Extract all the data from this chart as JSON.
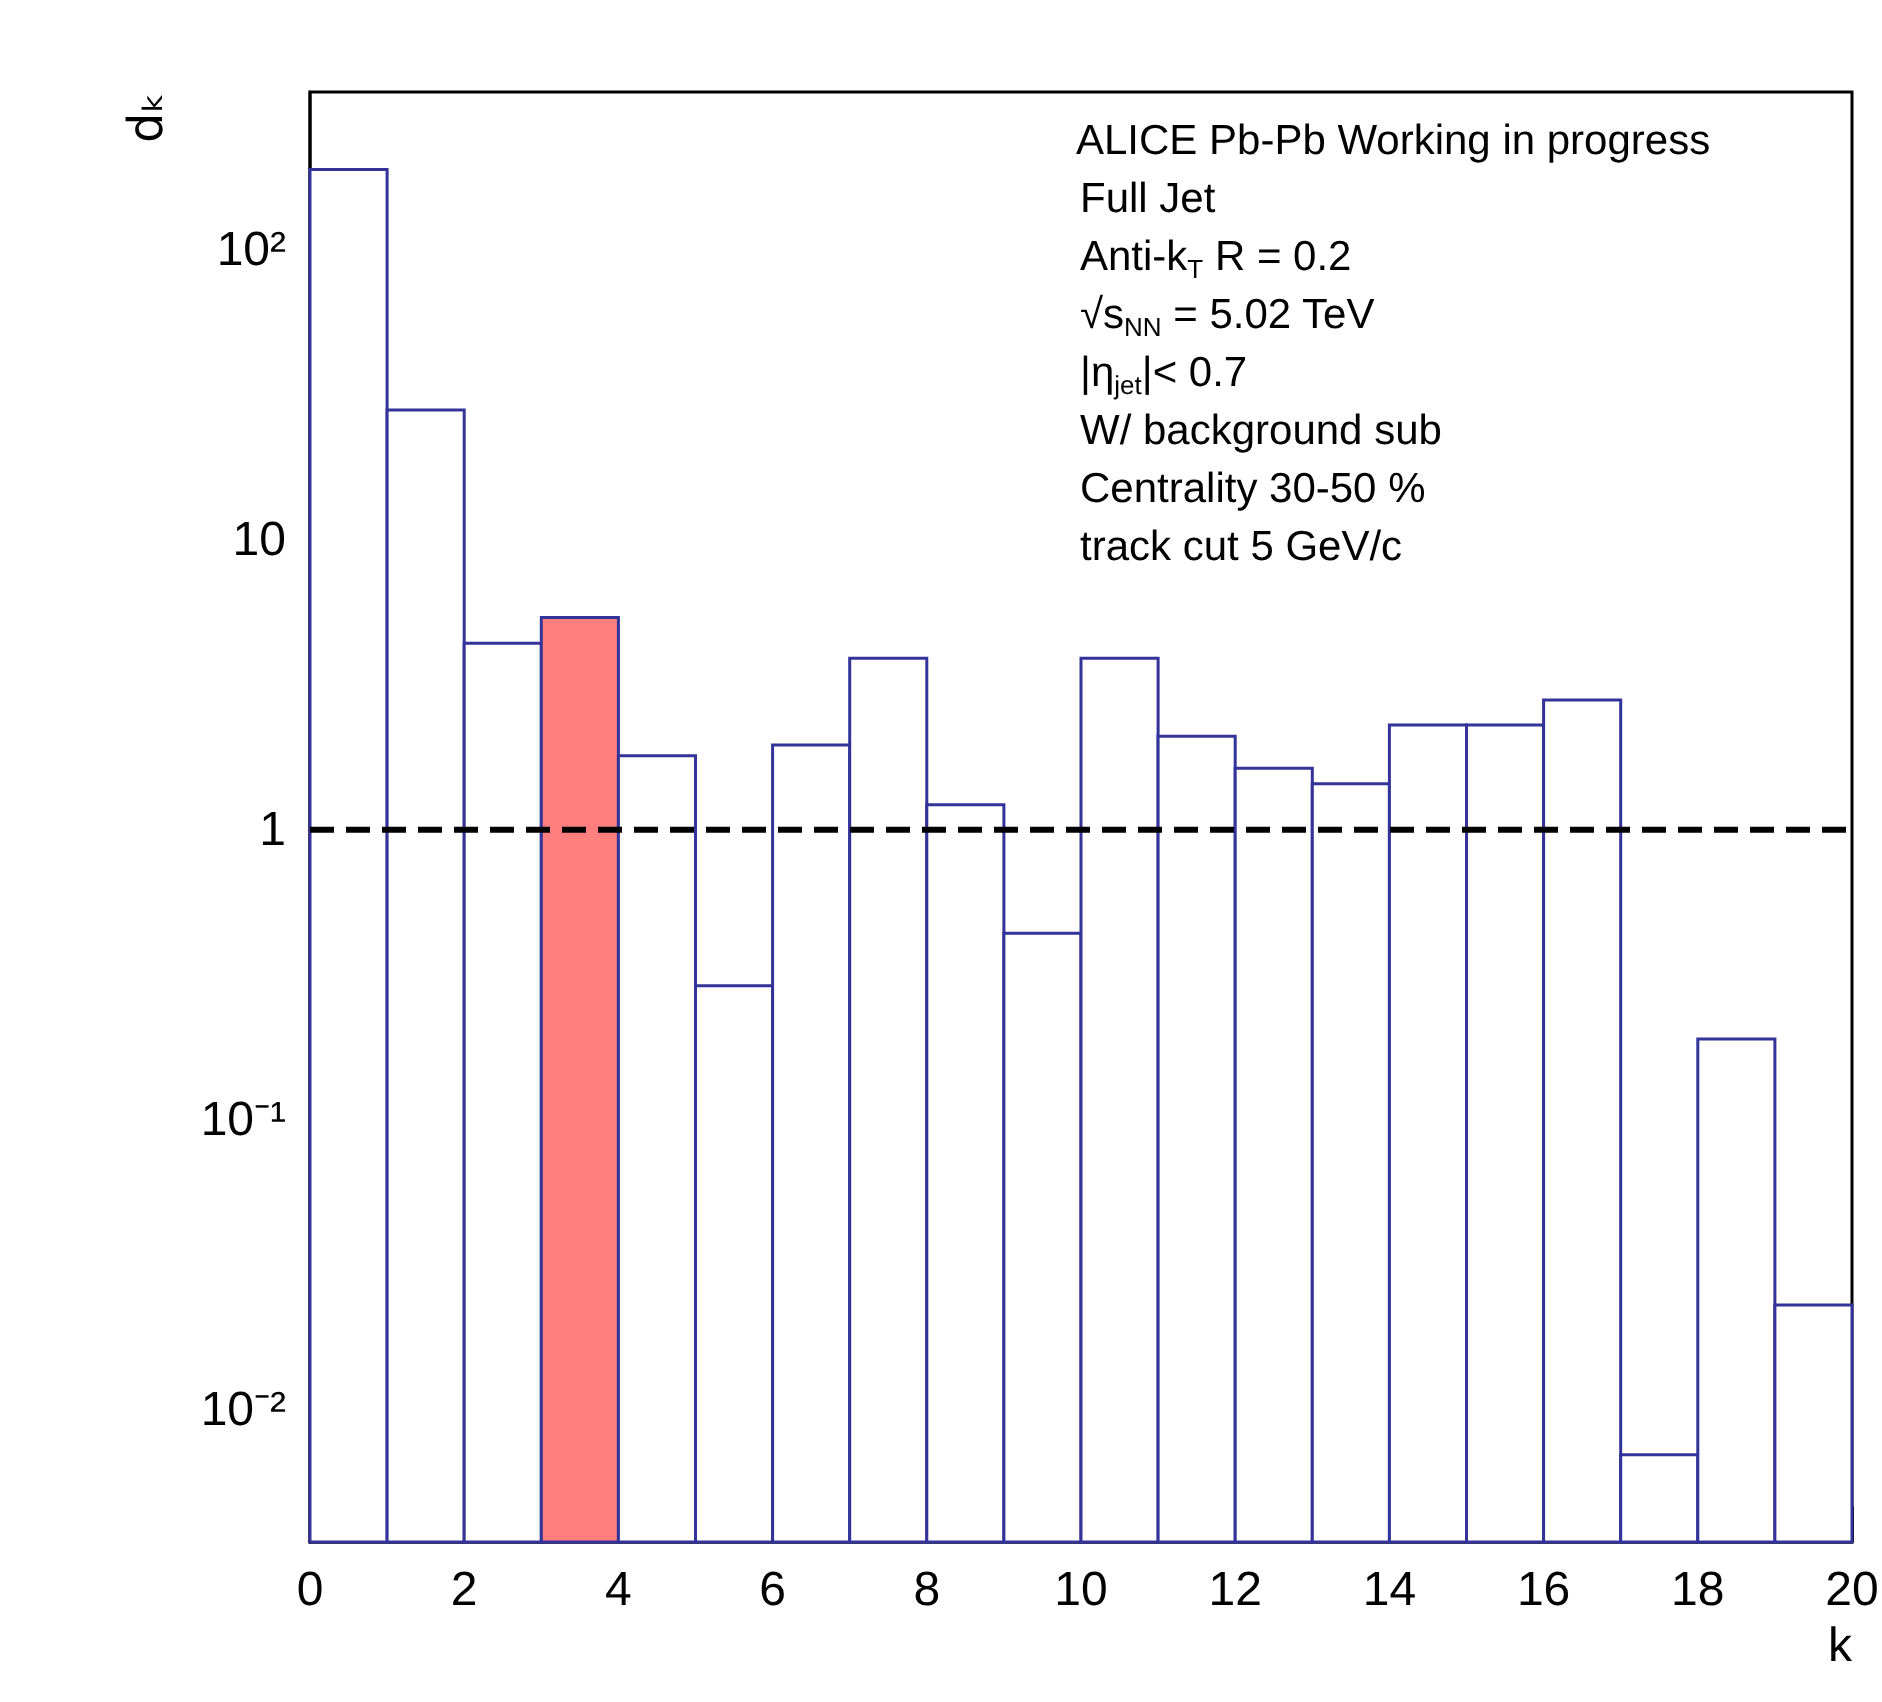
{
  "chart_data": {
    "type": "histogram",
    "xlabel": "k",
    "ylabel": "dₖ",
    "bins": [
      0,
      1,
      2,
      3,
      4,
      5,
      6,
      7,
      8,
      9,
      10,
      11,
      12,
      13,
      14,
      15,
      16,
      17,
      18,
      19,
      20
    ],
    "values": [
      189,
      28,
      4.4,
      5.4,
      1.8,
      0.29,
      1.96,
      3.9,
      1.22,
      0.44,
      3.9,
      2.1,
      1.63,
      1.44,
      2.3,
      2.3,
      2.8,
      0.007,
      0.19,
      0.023
    ],
    "color": "#333399",
    "colors": [
      "#ffffff",
      "#ffffff",
      "#ffffff",
      "#ff7f7f",
      "#ffffff",
      "#ffffff",
      "#ffffff",
      "#ffffff",
      "#ffffff",
      "#ffffff",
      "#ffffff",
      "#ffffff",
      "#ffffff",
      "#ffffff",
      "#ffffff",
      "#ffffff",
      "#ffffff",
      "#ffffff",
      "#ffffff",
      "#ffffff"
    ],
    "log": "y",
    "xlim": [
      0,
      20
    ],
    "xticks": [
      0,
      2,
      4,
      6,
      8,
      10,
      12,
      14,
      16,
      18,
      20
    ],
    "ylim": [
      0.0035,
      350
    ],
    "yticks": [
      {
        "value": 0.01,
        "label": "10⁻²"
      },
      {
        "value": 0.1,
        "label": "10⁻¹"
      },
      1,
      10,
      {
        "value": 100,
        "label": "10²"
      }
    ],
    "ref_lines": [
      {
        "axis": "y",
        "value": 1,
        "color": "#000000",
        "line_style": "dashed"
      }
    ],
    "annotations": [
      "ALICE Pb-Pb Working in progress",
      "Full Jet",
      "Anti-k$_{T}$ R = 0.2",
      "√s$_{NN}$ = 5.02 TeV",
      "|η$_{jet}$|< 0.7",
      "W/ background sub",
      "Centrality 30-50 %",
      "track cut 5 GeV/c"
    ]
  }
}
